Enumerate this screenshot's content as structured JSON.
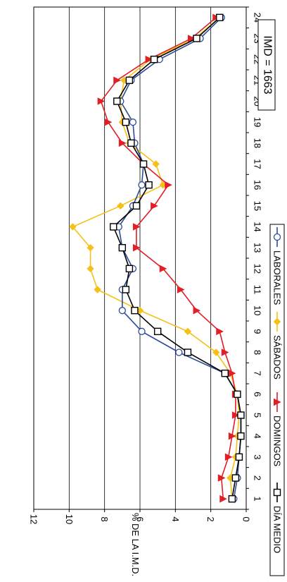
{
  "chart_data": {
    "type": "line",
    "orientation": "rotated-90-clockwise",
    "xlabel": "",
    "ylabel": "% DE LA I.M.D.",
    "ylim": [
      0,
      12
    ],
    "yticks": [
      0,
      2,
      4,
      6,
      8,
      10,
      12
    ],
    "x": [
      1,
      2,
      3,
      4,
      5,
      6,
      7,
      8,
      9,
      10,
      11,
      12,
      13,
      14,
      15,
      16,
      17,
      18,
      19,
      20,
      21,
      22,
      23,
      24
    ],
    "x_tick_labels": [
      "1",
      "2",
      "3",
      "4",
      "5",
      "6",
      "7",
      "8",
      "9",
      "10",
      "11",
      "12",
      "13",
      "14",
      "15",
      "16",
      "17",
      "18",
      "19",
      "20",
      "21",
      "22",
      "23",
      "24"
    ],
    "grid": "horizontal-at-y-ticks",
    "legend_position": "right-side-along-x-axis",
    "annotation": "IMD = 1663",
    "series": [
      {
        "name": "LABORALES",
        "color": "#2e4a9a",
        "marker": "circle-open",
        "values": [
          0.7,
          0.5,
          0.4,
          0.3,
          0.3,
          0.5,
          1.2,
          3.8,
          5.9,
          7.0,
          7.0,
          6.4,
          7.0,
          7.2,
          6.4,
          5.9,
          5.8,
          6.3,
          6.4,
          7.1,
          6.5,
          4.9,
          2.6,
          1.4
        ]
      },
      {
        "name": "SÁBADOS",
        "color": "#f5c118",
        "marker": "diamond-filled",
        "values": [
          0.8,
          0.9,
          0.6,
          0.5,
          0.4,
          0.5,
          0.9,
          1.7,
          3.3,
          6.0,
          8.4,
          8.8,
          8.8,
          9.8,
          7.1,
          4.7,
          5.1,
          6.6,
          7.0,
          7.1,
          6.9,
          5.4,
          2.9,
          1.5
        ]
      },
      {
        "name": "DOMINGOS",
        "color": "#e21e26",
        "marker": "triangle-filled",
        "values": [
          1.3,
          1.4,
          1.0,
          0.8,
          0.6,
          0.6,
          0.8,
          1.2,
          1.5,
          2.8,
          3.7,
          4.7,
          6.2,
          6.2,
          5.2,
          4.4,
          5.8,
          7.0,
          7.8,
          8.2,
          7.3,
          5.5,
          3.1,
          1.7
        ]
      },
      {
        "name": "DÍA MEDIO",
        "color": "#000000",
        "marker": "square-open",
        "values": [
          0.8,
          0.6,
          0.4,
          0.3,
          0.3,
          0.5,
          1.2,
          3.3,
          5.0,
          6.3,
          6.8,
          6.6,
          7.0,
          7.5,
          6.2,
          5.5,
          5.8,
          6.5,
          6.8,
          7.3,
          6.6,
          5.2,
          2.8,
          1.5
        ]
      }
    ]
  }
}
